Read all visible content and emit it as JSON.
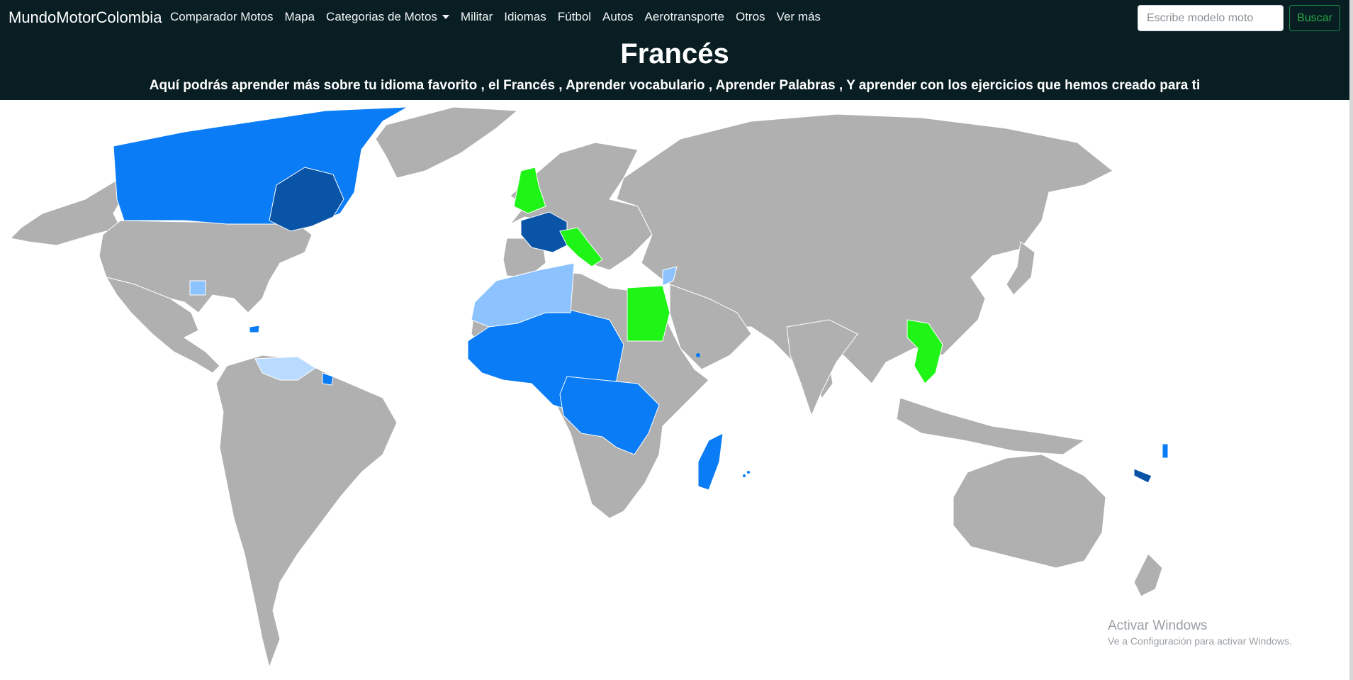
{
  "navbar": {
    "brand": "MundoMotorColombia",
    "items": [
      {
        "label": "Comparador Motos"
      },
      {
        "label": "Mapa"
      },
      {
        "label": "Categorias de Motos",
        "dropdown": true
      },
      {
        "label": "Militar"
      },
      {
        "label": "Idiomas"
      },
      {
        "label": "Fútbol"
      },
      {
        "label": "Autos"
      },
      {
        "label": "Aerotransporte"
      },
      {
        "label": "Otros"
      },
      {
        "label": "Ver más"
      }
    ],
    "search": {
      "placeholder": "Escribe modelo moto",
      "value": ""
    },
    "search_button": "Buscar"
  },
  "header": {
    "title": "Francés",
    "subtitle": "Aquí podrás aprender más sobre tu idioma favorito , el Francés , Aprender vocabulario , Aprender Palabras , Y aprender con los ejercicios que hemos creado para ti"
  },
  "map": {
    "colors": {
      "background": "#ffffff",
      "land": "#b0b0b0",
      "french_primary": "#0a54a8",
      "french_official": "#0a7cf5",
      "french_secondary": "#8cc3ff",
      "french_minor": "#b8dbff",
      "highlight": "#1ef516"
    }
  },
  "watermark": {
    "title": "Activar Windows",
    "subtitle": "Ve a Configuración para activar Windows."
  },
  "theme": {
    "navbar_bg": "#081e23",
    "button_accent": "#28a745"
  }
}
